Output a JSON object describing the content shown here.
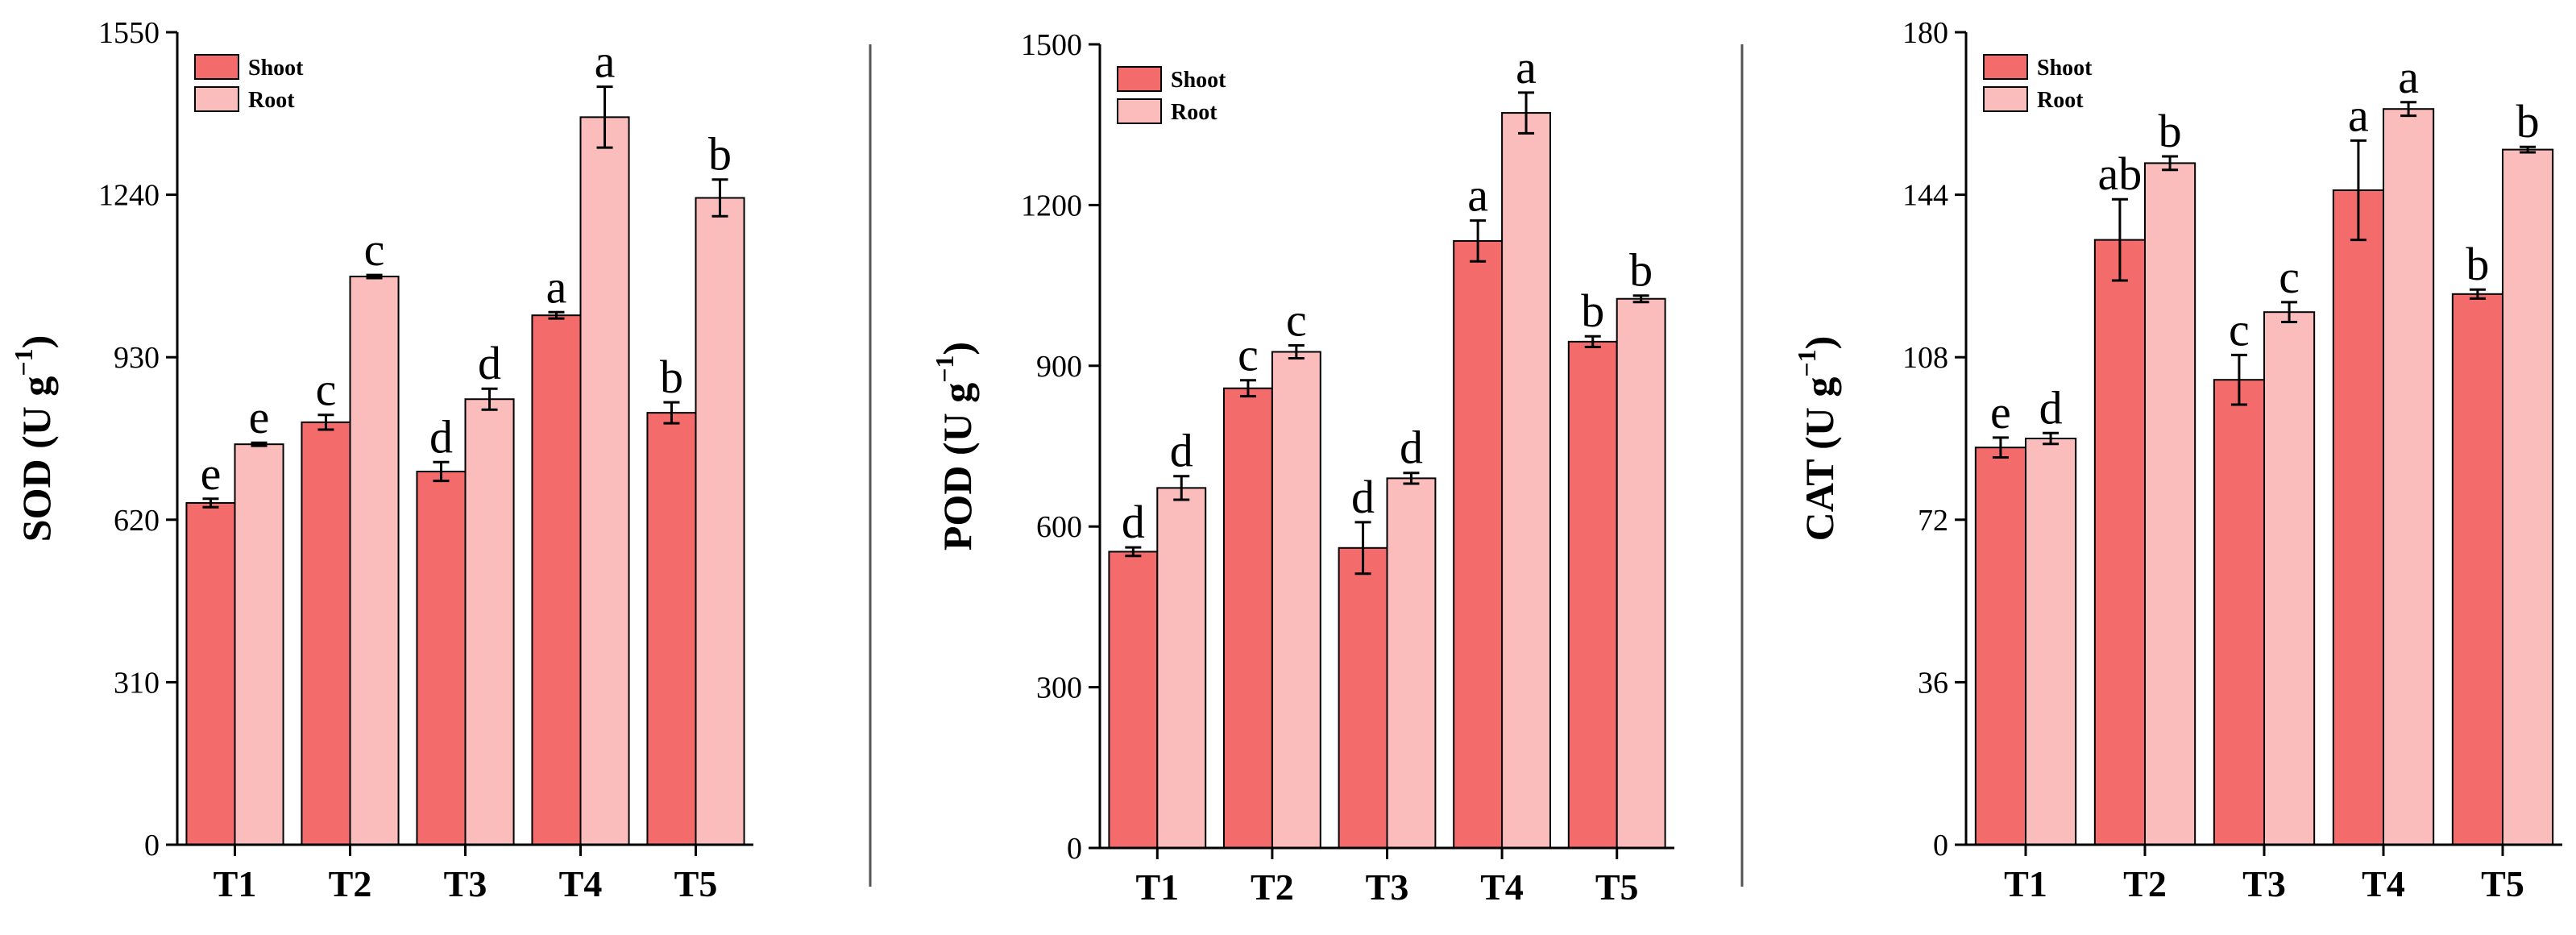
{
  "chart_data": [
    {
      "type": "bar",
      "ylabel": "SOD (U g",
      "ylabel_sup": "−1",
      "ylabel_close": ")",
      "ylim": [
        0,
        1550
      ],
      "yticks": [
        0,
        310,
        620,
        930,
        1240,
        1550
      ],
      "categories": [
        "T1",
        "T2",
        "T3",
        "T4",
        "T5"
      ],
      "series": [
        {
          "name": "Shoot",
          "values": [
            652,
            806,
            712,
            1010,
            824
          ],
          "errors": [
            8,
            14,
            18,
            6,
            20
          ]
        },
        {
          "name": "Root",
          "values": [
            764,
            1084,
            850,
            1388,
            1234
          ],
          "errors": [
            3,
            3,
            20,
            58,
            35
          ]
        }
      ],
      "significance": [
        [
          "e",
          "e"
        ],
        [
          "c",
          "c"
        ],
        [
          "d",
          "d"
        ],
        [
          "a",
          "a"
        ],
        [
          "b",
          "b"
        ]
      ],
      "legend_position": "top-left"
    },
    {
      "type": "bar",
      "ylabel": "POD (U g",
      "ylabel_sup": "−1",
      "ylabel_close": ")",
      "ylim": [
        0,
        1500
      ],
      "yticks": [
        0,
        300,
        600,
        900,
        1200,
        1500
      ],
      "categories": [
        "T1",
        "T2",
        "T3",
        "T4",
        "T5"
      ],
      "series": [
        {
          "name": "Shoot",
          "values": [
            553,
            858,
            560,
            1133,
            945
          ],
          "errors": [
            8,
            15,
            48,
            38,
            10
          ]
        },
        {
          "name": "Root",
          "values": [
            672,
            926,
            690,
            1372,
            1025
          ],
          "errors": [
            22,
            12,
            10,
            38,
            6
          ]
        }
      ],
      "significance": [
        [
          "d",
          "d"
        ],
        [
          "c",
          "c"
        ],
        [
          "d",
          "d"
        ],
        [
          "a",
          "a"
        ],
        [
          "b",
          "b"
        ]
      ],
      "legend_position": "top-left"
    },
    {
      "type": "bar",
      "ylabel": "CAT (U g",
      "ylabel_sup": "−1",
      "ylabel_close": ")",
      "ylim": [
        0,
        180
      ],
      "yticks": [
        0,
        36,
        72,
        108,
        144,
        180
      ],
      "categories": [
        "T1",
        "T2",
        "T3",
        "T4",
        "T5"
      ],
      "series": [
        {
          "name": "Shoot",
          "values": [
            88,
            134,
            103,
            145,
            122
          ],
          "errors": [
            2.2,
            9,
            5.5,
            11,
            1
          ]
        },
        {
          "name": "Root",
          "values": [
            90,
            151,
            118,
            163,
            154
          ],
          "errors": [
            1.2,
            1.5,
            2.2,
            1.5,
            0.6
          ]
        }
      ],
      "significance": [
        [
          "e",
          "d"
        ],
        [
          "ab",
          "b"
        ],
        [
          "c",
          "c"
        ],
        [
          "a",
          "a"
        ],
        [
          "b",
          "b"
        ]
      ],
      "legend_position": "top-left"
    }
  ],
  "colors": {
    "shoot": "#f46b6b",
    "root": "#fbbcbc",
    "axis": "#000000",
    "separator": "#555555"
  }
}
